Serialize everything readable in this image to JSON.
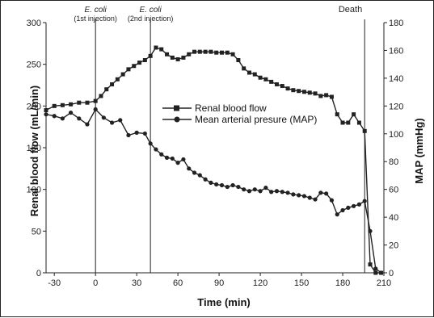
{
  "chart_data": {
    "type": "line",
    "xlabel": "Time (min)",
    "ylabel_left": "Renal blood flow (mL/min)",
    "ylabel_right": "MAP (mmHg)",
    "xlim": [
      -36,
      210
    ],
    "ylim_left": [
      0,
      300
    ],
    "ylim_right": [
      0,
      180
    ],
    "x_ticks": [
      -30,
      0,
      30,
      60,
      90,
      120,
      150,
      180,
      210
    ],
    "y_ticks_left": [
      0,
      50,
      100,
      150,
      200,
      250,
      300
    ],
    "y_ticks_right": [
      0,
      20,
      40,
      60,
      80,
      100,
      120,
      140,
      160,
      180
    ],
    "grid": false,
    "legend_position": "center",
    "annotations": [
      {
        "x": 0,
        "label": "E. coli",
        "sublabel": "(1st injection)"
      },
      {
        "x": 40,
        "label": "E. coli",
        "sublabel": "(2nd injection)"
      },
      {
        "x": 196,
        "label": "Death",
        "sublabel": ""
      }
    ],
    "series": [
      {
        "name": "Renal blood flow",
        "marker": "square",
        "axis": "left",
        "x": [
          -36,
          -30,
          -24,
          -18,
          -12,
          -6,
          0,
          4,
          8,
          12,
          16,
          20,
          24,
          28,
          32,
          36,
          40,
          44,
          48,
          52,
          56,
          60,
          64,
          68,
          72,
          76,
          80,
          84,
          88,
          92,
          96,
          100,
          104,
          108,
          112,
          116,
          120,
          124,
          128,
          132,
          136,
          140,
          144,
          148,
          152,
          156,
          160,
          164,
          168,
          172,
          176,
          180,
          184,
          188,
          192,
          196,
          200,
          204,
          208
        ],
        "values": [
          195,
          200,
          201,
          202,
          204,
          204,
          206,
          212,
          220,
          226,
          232,
          238,
          244,
          248,
          252,
          255,
          260,
          270,
          268,
          262,
          258,
          256,
          258,
          262,
          265,
          265,
          265,
          265,
          264,
          264,
          264,
          262,
          255,
          245,
          240,
          238,
          234,
          232,
          229,
          226,
          224,
          221,
          219,
          218,
          217,
          216,
          215,
          212,
          213,
          211,
          190,
          180,
          180,
          190,
          180,
          170,
          10,
          0,
          0
        ]
      },
      {
        "name": "Mean arterial presure (MAP)",
        "marker": "circle",
        "axis": "left",
        "x": [
          -36,
          -30,
          -24,
          -18,
          -12,
          -6,
          0,
          6,
          12,
          18,
          24,
          30,
          36,
          40,
          44,
          48,
          52,
          56,
          60,
          64,
          68,
          72,
          76,
          80,
          84,
          88,
          92,
          96,
          100,
          104,
          108,
          112,
          116,
          120,
          124,
          128,
          132,
          136,
          140,
          144,
          148,
          152,
          156,
          160,
          164,
          168,
          172,
          176,
          180,
          184,
          188,
          192,
          196,
          200,
          204,
          208
        ],
        "values": [
          190,
          188,
          185,
          192,
          185,
          178,
          196,
          186,
          180,
          183,
          165,
          168,
          167,
          155,
          148,
          142,
          138,
          137,
          132,
          136,
          125,
          120,
          117,
          112,
          108,
          106,
          105,
          103,
          105,
          103,
          100,
          98,
          100,
          98,
          102,
          97,
          98,
          97,
          96,
          94,
          93,
          92,
          90,
          88,
          96,
          95,
          87,
          70,
          75,
          78,
          80,
          82,
          86,
          50,
          5,
          0
        ]
      }
    ]
  }
}
